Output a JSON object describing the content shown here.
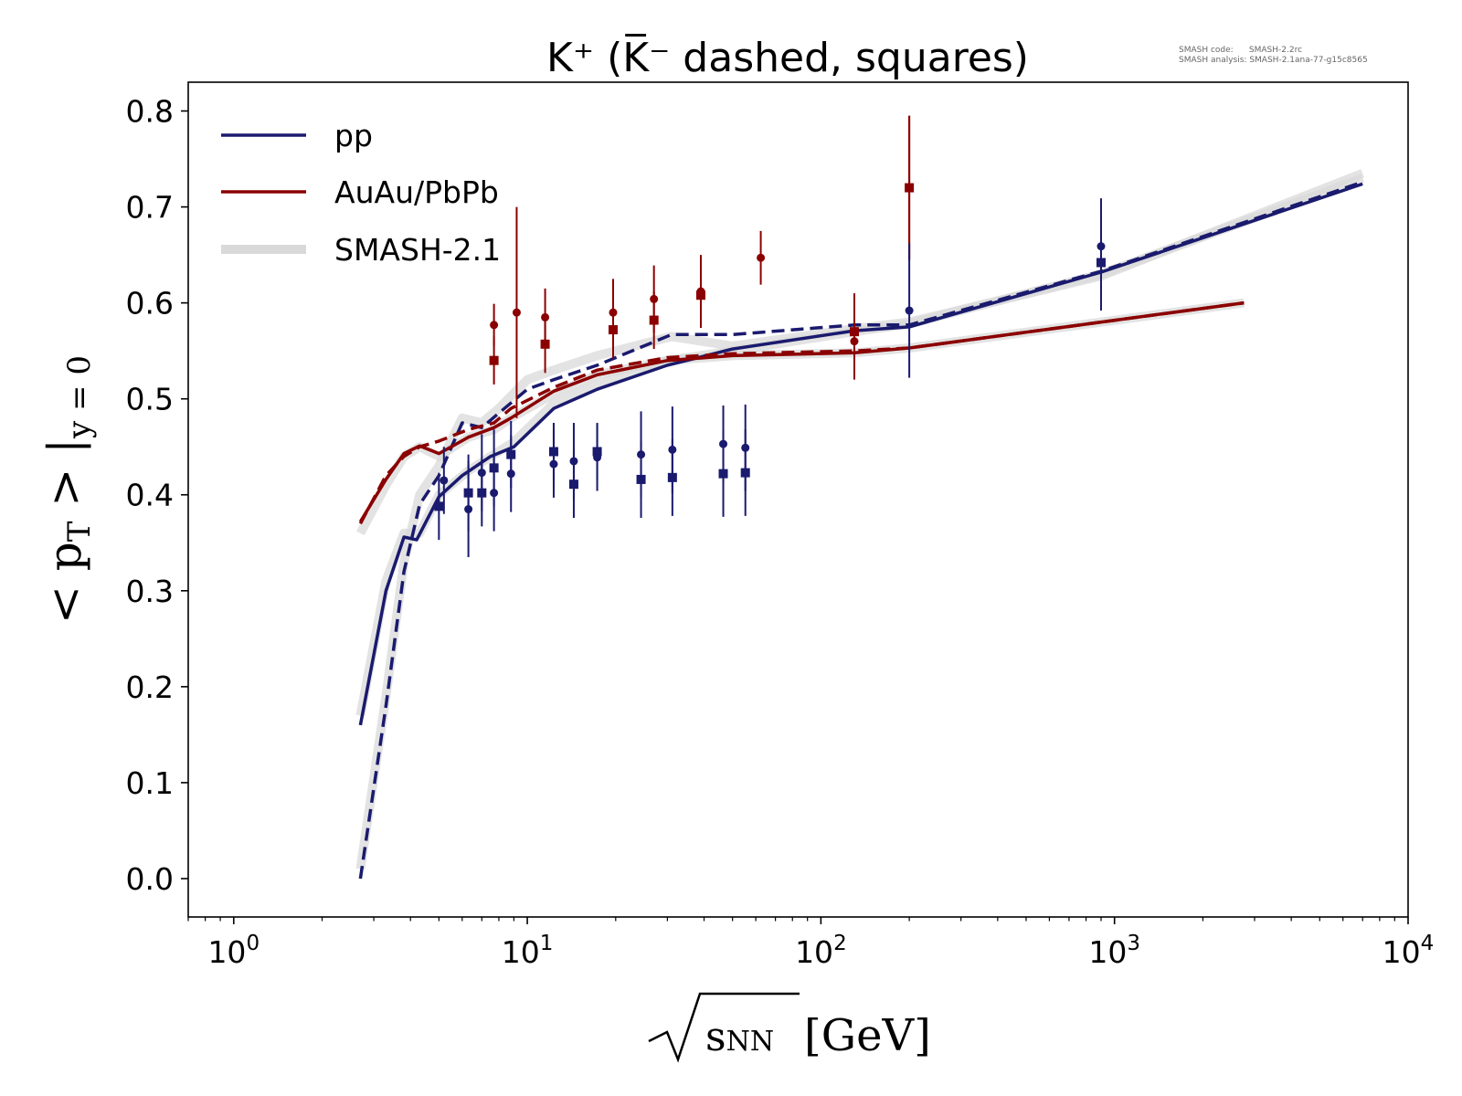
{
  "meta": {
    "smash_code_label": "SMASH code:",
    "smash_code_value": "SMASH-2.2rc",
    "smash_analysis_label": "SMASH analysis:",
    "smash_analysis_value": "SMASH-2.1ana-77-g15c8565"
  },
  "chart_data": {
    "type": "line",
    "title": "K⁺ (K̅⁻ dashed, squares)",
    "xlabel": "√sNN [GeV]",
    "ylabel": "<pT >|y=0",
    "x_scale": "log",
    "xlim": [
      0.7,
      10000
    ],
    "ylim": [
      -0.04,
      0.83
    ],
    "xticks": [
      1,
      10,
      100,
      1000,
      10000
    ],
    "xtick_labels": [
      "10",
      "10",
      "10",
      "10",
      "10"
    ],
    "xtick_exponents": [
      "0",
      "1",
      "2",
      "3",
      "4"
    ],
    "yticks": [
      0.0,
      0.1,
      0.2,
      0.3,
      0.4,
      0.5,
      0.6,
      0.7,
      0.8
    ],
    "ytick_labels": [
      "0.0",
      "0.1",
      "0.2",
      "0.3",
      "0.4",
      "0.5",
      "0.6",
      "0.7",
      "0.8"
    ],
    "grid": false,
    "legend_position": "top-left",
    "legend": [
      {
        "label": "pp",
        "color": "#1a1a6e",
        "style": "solid"
      },
      {
        "label": "AuAu/PbPb",
        "color": "#8b0000",
        "style": "solid"
      },
      {
        "label": "SMASH-2.1",
        "color": "#d9d9d9",
        "style": "thick"
      }
    ],
    "colors": {
      "pp": "#1a1a6e",
      "auau": "#8b0000",
      "smash": "#d9d9d9"
    },
    "series": [
      {
        "name": "pp",
        "group": "pp",
        "style": "solid",
        "x": [
          2.7,
          3.3,
          3.8,
          4.2,
          5.0,
          6.0,
          7.5,
          9.0,
          12.3,
          17.3,
          30,
          50,
          130,
          200,
          900,
          7000
        ],
        "y": [
          0.16,
          0.3,
          0.356,
          0.353,
          0.398,
          0.42,
          0.44,
          0.45,
          0.49,
          0.51,
          0.535,
          0.552,
          0.571,
          0.575,
          0.632,
          0.724
        ]
      },
      {
        "group": "pp",
        "style": "dashed",
        "x": [
          2.7,
          3.3,
          3.8,
          4.3,
          5.0,
          6.0,
          7.0,
          8.0,
          10.0,
          12.3,
          17.3,
          31,
          50,
          130,
          200,
          900,
          7000
        ],
        "y": [
          0.0,
          0.18,
          0.32,
          0.39,
          0.42,
          0.475,
          0.47,
          0.485,
          0.51,
          0.52,
          0.535,
          0.567,
          0.567,
          0.577,
          0.577,
          0.633,
          0.726
        ]
      },
      {
        "group": "smash",
        "style": "solid",
        "x": [
          2.7,
          3.3,
          3.8,
          4.3,
          5.0,
          6.3,
          7.5,
          9.0,
          12.3,
          17.3,
          30,
          50,
          130,
          200,
          900,
          7000
        ],
        "y": [
          0.17,
          0.31,
          0.36,
          0.36,
          0.4,
          0.425,
          0.44,
          0.455,
          0.495,
          0.515,
          0.54,
          0.55,
          0.57,
          0.578,
          0.63,
          0.73
        ]
      },
      {
        "group": "smash",
        "style": "solid",
        "x": [
          2.7,
          3.3,
          3.8,
          4.3,
          5.0,
          6.0,
          7.0,
          8.0,
          10.0,
          12.3,
          17.3,
          31,
          50,
          130,
          200,
          900,
          7000
        ],
        "y": [
          0.01,
          0.19,
          0.33,
          0.4,
          0.43,
          0.48,
          0.475,
          0.49,
          0.52,
          0.53,
          0.545,
          0.565,
          0.555,
          0.573,
          0.58,
          0.628,
          0.735
        ]
      },
      {
        "group": "smash",
        "style": "solid",
        "x": [
          2.7,
          3.3,
          3.8,
          4.3,
          5.0,
          6.3,
          7.7,
          8.8,
          12.3,
          17.3,
          30,
          50,
          130,
          200,
          2760
        ],
        "y": [
          0.36,
          0.41,
          0.44,
          0.45,
          0.44,
          0.46,
          0.468,
          0.48,
          0.505,
          0.525,
          0.54,
          0.545,
          0.548,
          0.553,
          0.6
        ]
      },
      {
        "name": "AuAu/PbPb",
        "group": "auau",
        "style": "solid",
        "x": [
          2.7,
          3.3,
          3.8,
          4.3,
          5.0,
          6.3,
          7.7,
          8.8,
          12.3,
          17.3,
          30,
          50,
          130,
          200,
          2760
        ],
        "y": [
          0.372,
          0.416,
          0.443,
          0.451,
          0.443,
          0.46,
          0.47,
          0.48,
          0.508,
          0.525,
          0.54,
          0.545,
          0.548,
          0.553,
          0.6
        ]
      },
      {
        "group": "auau",
        "style": "dashed",
        "x": [
          2.7,
          3.3,
          3.8,
          4.3,
          5.0,
          6.3,
          7.7,
          8.8,
          12.3,
          17.3,
          30,
          50,
          130,
          200,
          2760
        ],
        "y": [
          0.37,
          0.42,
          0.44,
          0.45,
          0.456,
          0.468,
          0.475,
          0.49,
          0.512,
          0.53,
          0.543,
          0.547,
          0.55,
          0.553,
          0.6
        ]
      }
    ],
    "points": [
      {
        "group": "auau",
        "marker": "circle",
        "x": [
          7.7,
          9.2,
          11.5,
          19.6,
          27,
          39,
          62.4,
          130,
          200
        ],
        "y": [
          0.577,
          0.59,
          0.585,
          0.59,
          0.604,
          0.612,
          0.647,
          0.56,
          0.72
        ],
        "yerr": [
          0.022,
          0.11,
          0.03,
          0.035,
          0.035,
          0.038,
          0.028,
          0.04,
          0.075
        ]
      },
      {
        "group": "auau",
        "marker": "square",
        "x": [
          7.7,
          11.5,
          19.6,
          27,
          39,
          130,
          200
        ],
        "y": [
          0.54,
          0.557,
          0.572,
          0.582,
          0.608,
          0.57,
          0.72
        ],
        "yerr": [
          0.025,
          0.03,
          0.03,
          0.03,
          0.03,
          0.04,
          0.075
        ]
      },
      {
        "group": "pp",
        "marker": "circle",
        "x": [
          5.2,
          6.3,
          7.0,
          7.7,
          8.8,
          12.3,
          14.4,
          17.3,
          24.4,
          31.2,
          46.5,
          55.3,
          200,
          900
        ],
        "y": [
          0.415,
          0.385,
          0.423,
          0.402,
          0.422,
          0.432,
          0.435,
          0.439,
          0.442,
          0.447,
          0.453,
          0.449,
          0.592,
          0.659
        ],
        "yerr": [
          0.035,
          0.05,
          0.04,
          0.04,
          0.04,
          0.035,
          0.04,
          0.035,
          0.045,
          0.045,
          0.04,
          0.045,
          0.07,
          0.05
        ]
      },
      {
        "group": "pp",
        "marker": "square",
        "x": [
          5.0,
          6.3,
          7.0,
          7.7,
          8.8,
          12.3,
          14.4,
          17.3,
          24.4,
          31.2,
          46.5,
          55.3,
          900
        ],
        "y": [
          0.388,
          0.402,
          0.402,
          0.428,
          0.442,
          0.445,
          0.411,
          0.445,
          0.416,
          0.418,
          0.422,
          0.423,
          0.642
        ],
        "yerr": [
          0.035,
          0.04,
          0.035,
          0.04,
          0.035,
          0.03,
          0.035,
          0.03,
          0.04,
          0.04,
          0.045,
          0.045,
          0.05
        ]
      }
    ]
  }
}
